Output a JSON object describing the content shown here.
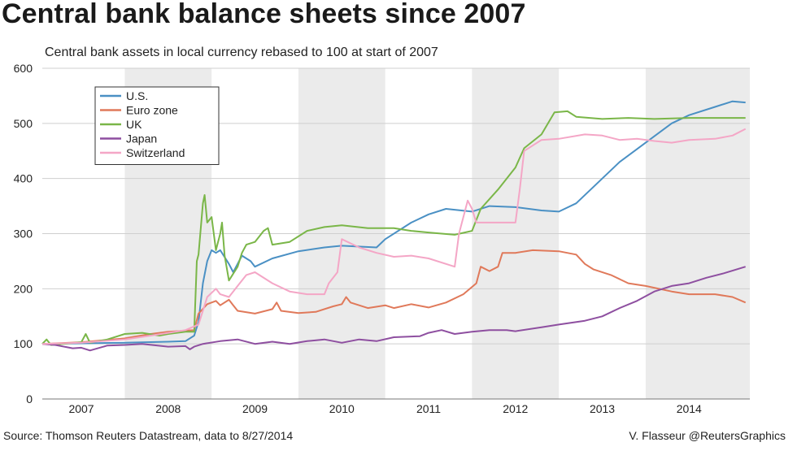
{
  "title": "Central bank balance sheets since 2007",
  "subtitle": "Central bank assets in local currency rebased to 100 at start of 2007",
  "source": "Source: Thomson Reuters Datastream, data to 8/27/2014",
  "credit": "V. Flasseur @ReutersGraphics",
  "chart_data": {
    "type": "line",
    "ylim": [
      0,
      600
    ],
    "yticks": [
      0,
      100,
      200,
      300,
      400,
      500,
      600
    ],
    "xlim": [
      2006.55,
      2014.7
    ],
    "xtick_labels": [
      "2007",
      "2008",
      "2009",
      "2010",
      "2011",
      "2012",
      "2013",
      "2014"
    ],
    "xtick_positions": [
      2007.0,
      2008.0,
      2009.0,
      2010.0,
      2011.0,
      2012.0,
      2013.0,
      2014.0
    ],
    "shaded_years": [
      [
        2007.5,
        2008.5
      ],
      [
        2009.5,
        2010.5
      ],
      [
        2011.5,
        2012.5
      ],
      [
        2013.5,
        2014.7
      ]
    ],
    "legend_position": "top-left",
    "series": [
      {
        "name": "U.S.",
        "color": "#4a90c4",
        "points": [
          [
            2006.55,
            100
          ],
          [
            2007.0,
            101
          ],
          [
            2007.5,
            102
          ],
          [
            2008.0,
            104
          ],
          [
            2008.2,
            105
          ],
          [
            2008.3,
            115
          ],
          [
            2008.35,
            140
          ],
          [
            2008.4,
            210
          ],
          [
            2008.45,
            250
          ],
          [
            2008.5,
            270
          ],
          [
            2008.55,
            265
          ],
          [
            2008.6,
            270
          ],
          [
            2008.7,
            245
          ],
          [
            2008.75,
            230
          ],
          [
            2008.85,
            260
          ],
          [
            2008.95,
            250
          ],
          [
            2009.0,
            240
          ],
          [
            2009.2,
            255
          ],
          [
            2009.5,
            268
          ],
          [
            2009.8,
            275
          ],
          [
            2010.0,
            278
          ],
          [
            2010.4,
            275
          ],
          [
            2010.5,
            290
          ],
          [
            2010.8,
            320
          ],
          [
            2011.0,
            335
          ],
          [
            2011.2,
            345
          ],
          [
            2011.5,
            340
          ],
          [
            2011.7,
            350
          ],
          [
            2012.0,
            348
          ],
          [
            2012.3,
            342
          ],
          [
            2012.5,
            340
          ],
          [
            2012.7,
            355
          ],
          [
            2012.9,
            385
          ],
          [
            2013.2,
            430
          ],
          [
            2013.5,
            465
          ],
          [
            2013.8,
            500
          ],
          [
            2014.0,
            515
          ],
          [
            2014.3,
            530
          ],
          [
            2014.5,
            540
          ],
          [
            2014.65,
            538
          ]
        ]
      },
      {
        "name": "Euro zone",
        "color": "#e0795a",
        "points": [
          [
            2006.55,
            100
          ],
          [
            2007.0,
            103
          ],
          [
            2007.5,
            110
          ],
          [
            2007.8,
            118
          ],
          [
            2008.0,
            122
          ],
          [
            2008.3,
            125
          ],
          [
            2008.35,
            155
          ],
          [
            2008.45,
            172
          ],
          [
            2008.55,
            178
          ],
          [
            2008.6,
            170
          ],
          [
            2008.7,
            180
          ],
          [
            2008.75,
            170
          ],
          [
            2008.8,
            160
          ],
          [
            2009.0,
            155
          ],
          [
            2009.2,
            163
          ],
          [
            2009.25,
            175
          ],
          [
            2009.3,
            160
          ],
          [
            2009.5,
            156
          ],
          [
            2009.7,
            158
          ],
          [
            2009.9,
            168
          ],
          [
            2010.0,
            172
          ],
          [
            2010.05,
            185
          ],
          [
            2010.1,
            175
          ],
          [
            2010.3,
            165
          ],
          [
            2010.5,
            170
          ],
          [
            2010.6,
            165
          ],
          [
            2010.8,
            172
          ],
          [
            2011.0,
            166
          ],
          [
            2011.2,
            175
          ],
          [
            2011.4,
            190
          ],
          [
            2011.55,
            210
          ],
          [
            2011.6,
            240
          ],
          [
            2011.7,
            232
          ],
          [
            2011.8,
            240
          ],
          [
            2011.85,
            265
          ],
          [
            2012.0,
            265
          ],
          [
            2012.2,
            270
          ],
          [
            2012.5,
            268
          ],
          [
            2012.7,
            262
          ],
          [
            2012.8,
            245
          ],
          [
            2012.9,
            235
          ],
          [
            2013.1,
            225
          ],
          [
            2013.3,
            210
          ],
          [
            2013.5,
            205
          ],
          [
            2013.8,
            195
          ],
          [
            2014.0,
            190
          ],
          [
            2014.3,
            190
          ],
          [
            2014.5,
            185
          ],
          [
            2014.65,
            175
          ]
        ]
      },
      {
        "name": "UK",
        "color": "#7ab648",
        "points": [
          [
            2006.55,
            100
          ],
          [
            2006.6,
            108
          ],
          [
            2006.65,
            98
          ],
          [
            2007.0,
            103
          ],
          [
            2007.05,
            118
          ],
          [
            2007.1,
            102
          ],
          [
            2007.3,
            108
          ],
          [
            2007.5,
            118
          ],
          [
            2007.7,
            120
          ],
          [
            2007.9,
            115
          ],
          [
            2008.0,
            118
          ],
          [
            2008.2,
            122
          ],
          [
            2008.3,
            122
          ],
          [
            2008.33,
            250
          ],
          [
            2008.35,
            262
          ],
          [
            2008.4,
            355
          ],
          [
            2008.42,
            370
          ],
          [
            2008.45,
            320
          ],
          [
            2008.5,
            330
          ],
          [
            2008.55,
            270
          ],
          [
            2008.6,
            300
          ],
          [
            2008.62,
            320
          ],
          [
            2008.65,
            260
          ],
          [
            2008.7,
            215
          ],
          [
            2008.8,
            240
          ],
          [
            2008.85,
            265
          ],
          [
            2008.9,
            280
          ],
          [
            2009.0,
            285
          ],
          [
            2009.1,
            305
          ],
          [
            2009.15,
            310
          ],
          [
            2009.2,
            280
          ],
          [
            2009.4,
            285
          ],
          [
            2009.6,
            305
          ],
          [
            2009.8,
            312
          ],
          [
            2010.0,
            315
          ],
          [
            2010.3,
            310
          ],
          [
            2010.6,
            310
          ],
          [
            2010.8,
            305
          ],
          [
            2011.0,
            302
          ],
          [
            2011.3,
            298
          ],
          [
            2011.5,
            305
          ],
          [
            2011.6,
            345
          ],
          [
            2011.8,
            380
          ],
          [
            2012.0,
            420
          ],
          [
            2012.1,
            455
          ],
          [
            2012.3,
            480
          ],
          [
            2012.45,
            520
          ],
          [
            2012.6,
            522
          ],
          [
            2012.7,
            512
          ],
          [
            2013.0,
            508
          ],
          [
            2013.3,
            510
          ],
          [
            2013.6,
            508
          ],
          [
            2014.0,
            510
          ],
          [
            2014.3,
            510
          ],
          [
            2014.65,
            510
          ]
        ]
      },
      {
        "name": "Japan",
        "color": "#8e4fa0",
        "points": [
          [
            2006.55,
            100
          ],
          [
            2006.7,
            98
          ],
          [
            2006.9,
            92
          ],
          [
            2007.0,
            93
          ],
          [
            2007.1,
            88
          ],
          [
            2007.3,
            97
          ],
          [
            2007.5,
            98
          ],
          [
            2007.7,
            100
          ],
          [
            2008.0,
            95
          ],
          [
            2008.2,
            96
          ],
          [
            2008.25,
            90
          ],
          [
            2008.3,
            95
          ],
          [
            2008.4,
            100
          ],
          [
            2008.6,
            105
          ],
          [
            2008.8,
            108
          ],
          [
            2009.0,
            100
          ],
          [
            2009.2,
            104
          ],
          [
            2009.4,
            100
          ],
          [
            2009.6,
            105
          ],
          [
            2009.8,
            108
          ],
          [
            2010.0,
            102
          ],
          [
            2010.2,
            108
          ],
          [
            2010.4,
            105
          ],
          [
            2010.6,
            112
          ],
          [
            2010.9,
            114
          ],
          [
            2011.0,
            120
          ],
          [
            2011.15,
            125
          ],
          [
            2011.3,
            118
          ],
          [
            2011.5,
            122
          ],
          [
            2011.7,
            125
          ],
          [
            2011.9,
            125
          ],
          [
            2012.0,
            123
          ],
          [
            2012.3,
            130
          ],
          [
            2012.5,
            135
          ],
          [
            2012.8,
            142
          ],
          [
            2013.0,
            150
          ],
          [
            2013.2,
            165
          ],
          [
            2013.4,
            178
          ],
          [
            2013.6,
            195
          ],
          [
            2013.8,
            205
          ],
          [
            2014.0,
            210
          ],
          [
            2014.2,
            220
          ],
          [
            2014.4,
            228
          ],
          [
            2014.65,
            240
          ]
        ]
      },
      {
        "name": "Switzerland",
        "color": "#f4a6c6",
        "points": [
          [
            2006.55,
            100
          ],
          [
            2007.0,
            102
          ],
          [
            2007.5,
            108
          ],
          [
            2007.8,
            115
          ],
          [
            2008.0,
            120
          ],
          [
            2008.2,
            125
          ],
          [
            2008.35,
            135
          ],
          [
            2008.45,
            185
          ],
          [
            2008.55,
            200
          ],
          [
            2008.6,
            190
          ],
          [
            2008.7,
            185
          ],
          [
            2008.8,
            205
          ],
          [
            2008.9,
            225
          ],
          [
            2009.0,
            230
          ],
          [
            2009.2,
            210
          ],
          [
            2009.4,
            195
          ],
          [
            2009.6,
            190
          ],
          [
            2009.8,
            190
          ],
          [
            2009.85,
            210
          ],
          [
            2009.95,
            230
          ],
          [
            2010.0,
            290
          ],
          [
            2010.2,
            275
          ],
          [
            2010.4,
            265
          ],
          [
            2010.6,
            258
          ],
          [
            2010.8,
            260
          ],
          [
            2011.0,
            255
          ],
          [
            2011.3,
            240
          ],
          [
            2011.35,
            300
          ],
          [
            2011.45,
            360
          ],
          [
            2011.5,
            345
          ],
          [
            2011.55,
            320
          ],
          [
            2011.7,
            320
          ],
          [
            2012.0,
            320
          ],
          [
            2012.05,
            380
          ],
          [
            2012.1,
            450
          ],
          [
            2012.3,
            470
          ],
          [
            2012.5,
            472
          ],
          [
            2012.8,
            480
          ],
          [
            2013.0,
            478
          ],
          [
            2013.2,
            470
          ],
          [
            2013.4,
            472
          ],
          [
            2013.6,
            468
          ],
          [
            2013.8,
            465
          ],
          [
            2014.0,
            470
          ],
          [
            2014.3,
            472
          ],
          [
            2014.5,
            478
          ],
          [
            2014.65,
            490
          ]
        ]
      }
    ]
  }
}
